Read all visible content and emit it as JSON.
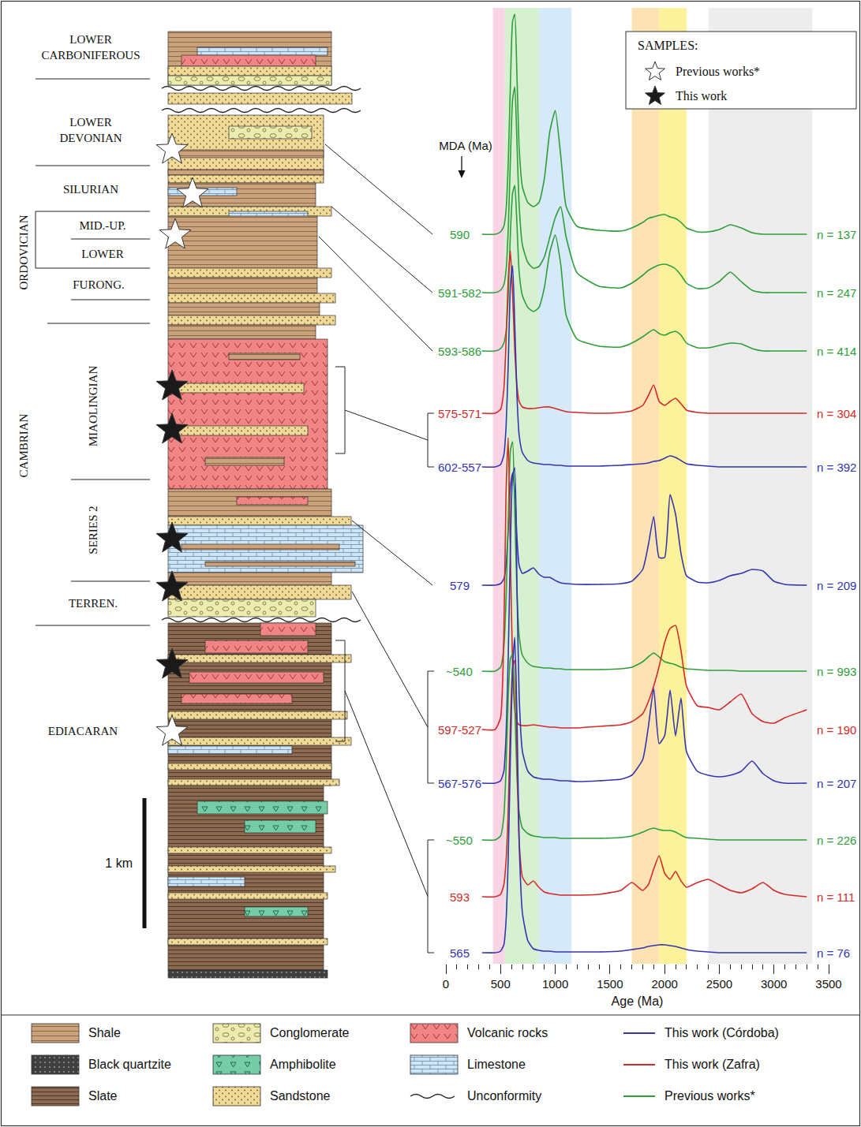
{
  "column": {
    "units": [
      "LOWER CARBONIFEROUS",
      "LOWER DEVONIAN",
      "SILURIAN",
      "ORDOVICIAN",
      "MID.-UP.",
      "LOWER",
      "FURONG.",
      "CAMBRIAN",
      "MIAOLINGIAN",
      "SERIES 2",
      "TERREN.",
      "EDIACARAN"
    ],
    "scale_bar": "1 km"
  },
  "samples": {
    "title": "SAMPLES:",
    "items": [
      "Previous works*",
      "This work"
    ]
  },
  "key": {
    "items": [
      {
        "label": "Shale"
      },
      {
        "label": "Black quartzite"
      },
      {
        "label": "Slate"
      },
      {
        "label": "Conglomerate"
      },
      {
        "label": "Amphibolite"
      },
      {
        "label": "Sandstone"
      },
      {
        "label": "Volcanic rocks"
      },
      {
        "label": "Limestone"
      },
      {
        "label": "Unconformity"
      },
      {
        "label": "This work (Córdoba)",
        "color": "#3535b0"
      },
      {
        "label": "This work (Zafra)",
        "color": "#d42a2a"
      },
      {
        "label": "Previous works*",
        "color": "#2f9e3a"
      }
    ]
  },
  "chart_data": {
    "type": "line",
    "x_label": "Age (Ma)",
    "mda_label": "MDA (Ma)",
    "xlim": [
      0,
      3500
    ],
    "xticks": [
      0,
      500,
      1000,
      1500,
      2000,
      2500,
      3000,
      3500
    ],
    "ylim": [
      0,
      1212
    ],
    "tick_labels": "x",
    "grid": false,
    "bands": [
      {
        "from": 430,
        "to": 540,
        "color": "#f9d4e4"
      },
      {
        "from": 540,
        "to": 850,
        "color": "#d7f0d2"
      },
      {
        "from": 850,
        "to": 1150,
        "color": "#d6e9f8"
      },
      {
        "from": 1700,
        "to": 2200,
        "color": "#fde3b4"
      },
      {
        "from": 1950,
        "to": 2200,
        "color": "#fdf29c"
      },
      {
        "from": 2400,
        "to": 3350,
        "color": "#ededed"
      }
    ],
    "x": [
      330,
      450,
      500,
      530,
      550,
      570,
      590,
      610,
      630,
      650,
      670,
      700,
      750,
      800,
      850,
      900,
      950,
      1000,
      1050,
      1100,
      1200,
      1400,
      1600,
      1700,
      1800,
      1850,
      1900,
      1950,
      2000,
      2050,
      2100,
      2150,
      2200,
      2300,
      2400,
      2500,
      2600,
      2700,
      2800,
      2900,
      3000,
      3100,
      3300
    ],
    "series": [
      {
        "color": "#2f9e3a",
        "mda": "590",
        "n": "n = 137",
        "values": [
          925,
          925,
          928,
          935,
          955,
          1015,
          1115,
          1195,
          1204,
          1125,
          1035,
          985,
          965,
          960,
          965,
          995,
          1055,
          1082,
          1025,
          960,
          935,
          930,
          929,
          933,
          940,
          945,
          947,
          949,
          950,
          947,
          945,
          940,
          933,
          928,
          928,
          931,
          937,
          933,
          927,
          925,
          925,
          925,
          925
        ]
      },
      {
        "color": "#2f9e3a",
        "mda": "591-582",
        "n": "n = 247",
        "values": [
          851,
          851,
          854,
          861,
          879,
          931,
          1021,
          1096,
          1112,
          1041,
          961,
          911,
          889,
          882,
          884,
          896,
          921,
          946,
          960,
          921,
          876,
          859,
          857,
          863,
          873,
          879,
          883,
          886,
          887,
          885,
          881,
          873,
          863,
          856,
          857,
          865,
          877,
          865,
          854,
          851,
          851,
          851,
          851
        ]
      },
      {
        "color": "#2f9e3a",
        "mda": "593-586",
        "n": "n = 414",
        "values": [
          777,
          777,
          780,
          787,
          802,
          847,
          927,
          977,
          987,
          937,
          877,
          847,
          832,
          827,
          832,
          857,
          902,
          924,
          887,
          822,
          792,
          783,
          782,
          787,
          795,
          800,
          804,
          799,
          797,
          800,
          802,
          797,
          787,
          781,
          781,
          784,
          787,
          786,
          780,
          777,
          777,
          777,
          777
        ]
      },
      {
        "color": "#d42a2a",
        "mda": "575-571",
        "n": "n = 304",
        "values": [
          698,
          698,
          703,
          728,
          788,
          868,
          904,
          848,
          778,
          733,
          713,
          706,
          704,
          704,
          705,
          706,
          706,
          704,
          702,
          700,
          699,
          698,
          699,
          701,
          708,
          720,
          734,
          713,
          708,
          713,
          717,
          710,
          702,
          699,
          698,
          698,
          698,
          698,
          698,
          698,
          698,
          698,
          698
        ]
      },
      {
        "color": "#3535b0",
        "mda": "602-557",
        "n": "n = 392",
        "values": [
          630,
          630,
          633,
          645,
          680,
          760,
          860,
          885,
          810,
          720,
          670,
          648,
          638,
          635,
          634,
          633,
          633,
          632,
          632,
          631,
          631,
          631,
          632,
          633,
          634,
          635,
          637,
          638,
          641,
          644,
          642,
          638,
          634,
          632,
          631,
          630,
          630,
          630,
          630,
          630,
          630,
          630,
          630
        ]
      },
      {
        "color": "#3535b0",
        "mda": "579",
        "n": "n = 209",
        "values": [
          480,
          480,
          482,
          488,
          505,
          550,
          605,
          622,
          600,
          540,
          505,
          495,
          498,
          502,
          494,
          490,
          490,
          486,
          483,
          482,
          481,
          481,
          482,
          485,
          500,
          530,
          567,
          515,
          515,
          595,
          570,
          520,
          492,
          484,
          483,
          486,
          492,
          495,
          500,
          498,
          485,
          481,
          480
        ]
      },
      {
        "color": "#2f9e3a",
        "mda": "~540",
        "n": "n = 993",
        "values": [
          371,
          371,
          376,
          401,
          461,
          561,
          651,
          662,
          571,
          471,
          416,
          391,
          381,
          377,
          376,
          375,
          375,
          374,
          374,
          373,
          373,
          373,
          374,
          376,
          383,
          389,
          394,
          389,
          383,
          381,
          379,
          376,
          374,
          373,
          372,
          372,
          372,
          371,
          371,
          371,
          371,
          371,
          371
        ]
      },
      {
        "color": "#d42a2a",
        "mda": "597-527",
        "n": "n = 190",
        "values": [
          297,
          297,
          312,
          417,
          597,
          667,
          517,
          377,
          322,
          307,
          303,
          302,
          302,
          303,
          302,
          301,
          300,
          300,
          299,
          299,
          299,
          301,
          303,
          307,
          317,
          332,
          352,
          377,
          407,
          425,
          429,
          397,
          352,
          327,
          325,
          322,
          332,
          342,
          317,
          307,
          305,
          312,
          322
        ]
      },
      {
        "color": "#3535b0",
        "mda": "567-576",
        "n": "n = 207",
        "values": [
          229,
          229,
          232,
          244,
          289,
          389,
          529,
          619,
          629,
          479,
          339,
          269,
          244,
          237,
          235,
          234,
          234,
          233,
          232,
          232,
          231,
          232,
          234,
          239,
          259,
          299,
          349,
          279,
          289,
          347,
          289,
          337,
          269,
          244,
          239,
          237,
          239,
          244,
          257,
          241,
          232,
          229,
          229
        ]
      },
      {
        "color": "#2f9e3a",
        "mda": "~550",
        "n": "n = 226",
        "values": [
          157,
          157,
          162,
          187,
          247,
          337,
          387,
          392,
          327,
          237,
          192,
          172,
          165,
          162,
          161,
          160,
          160,
          160,
          159,
          159,
          159,
          159,
          160,
          162,
          167,
          170,
          172,
          170,
          169,
          169,
          167,
          163,
          160,
          159,
          158,
          157,
          157,
          157,
          157,
          157,
          157,
          157,
          157
        ]
      },
      {
        "color": "#d42a2a",
        "mda": "593",
        "n": "n = 111",
        "values": [
          85,
          85,
          88,
          100,
          130,
          195,
          305,
          375,
          385,
          265,
          155,
          110,
          100,
          105,
          97,
          91,
          89,
          88,
          87,
          87,
          87,
          88,
          93,
          103,
          93,
          100,
          120,
          137,
          115,
          107,
          117,
          105,
          97,
          103,
          107,
          100,
          93,
          90,
          95,
          103,
          93,
          88,
          85
        ]
      },
      {
        "color": "#3535b0",
        "mda": "565",
        "n": "n = 76",
        "values": [
          14,
          14,
          16,
          24,
          54,
          134,
          264,
          374,
          414,
          314,
          154,
          64,
          29,
          19,
          17,
          16,
          16,
          15,
          15,
          15,
          15,
          15,
          16,
          18,
          20,
          22,
          23,
          24,
          24,
          23,
          22,
          20,
          18,
          16,
          15,
          14,
          14,
          14,
          14,
          14,
          14,
          14,
          14
        ]
      }
    ]
  }
}
